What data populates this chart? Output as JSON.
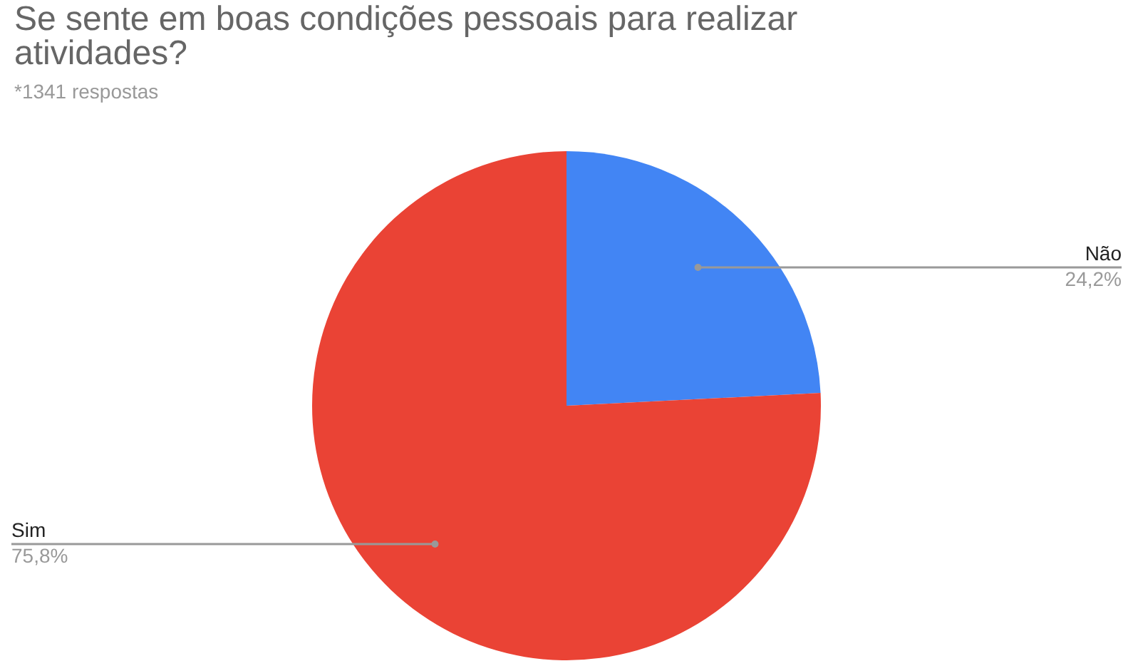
{
  "chart_data": {
    "type": "pie",
    "title": "Se sente em boas condições pessoais para realizar atividades?",
    "annotations": [
      "*1341 respostas"
    ],
    "categories": [
      "Não",
      "Sim"
    ],
    "values": [
      24.2,
      75.8
    ],
    "value_labels": [
      "24,2%",
      "75,8%"
    ],
    "colors": [
      "#4285f4",
      "#ea4335"
    ],
    "legend": false
  }
}
